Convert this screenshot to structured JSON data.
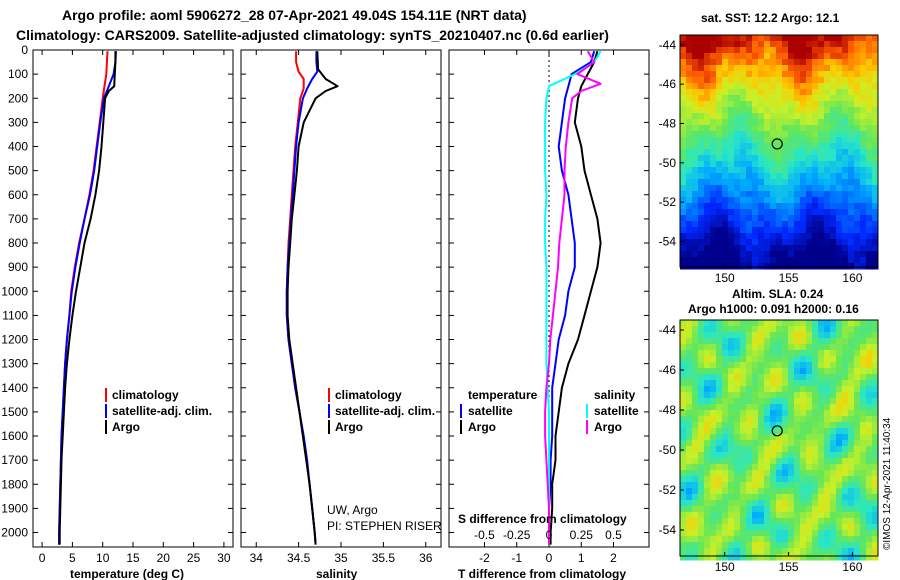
{
  "header": {
    "line1": "Argo profile: aoml 5906272_28 07-Apr-2021 49.04S 154.11E (NRT data)",
    "line2": "Climatology: CARS2009. Satellite-adjusted climatology: synTS_20210407.nc (0.6d earlier)"
  },
  "colors": {
    "climatology": "#ff0000",
    "satellite": "#0000ff",
    "argo": "#000000",
    "sat_salinity": "#00ffff",
    "argo_salinity": "#ff00ff"
  },
  "depth_axis": {
    "ticks": [
      0,
      100,
      200,
      300,
      400,
      500,
      600,
      700,
      800,
      900,
      1000,
      1100,
      1200,
      1300,
      1400,
      1500,
      1600,
      1700,
      1800,
      1900,
      2000
    ],
    "range": [
      0,
      2060
    ]
  },
  "chart_data": [
    {
      "type": "line",
      "title": "",
      "xlabel": "temperature (deg C)",
      "ylabel": "depth",
      "xlim": [
        -1.5,
        31.5
      ],
      "x_ticks": [
        0,
        5,
        10,
        15,
        20,
        25,
        30
      ],
      "legend": [
        "climatology",
        "satellite-adj. clim.",
        "Argo"
      ],
      "series": [
        {
          "name": "climatology",
          "depth": [
            5,
            50,
            100,
            150,
            200,
            300,
            400,
            500,
            600,
            700,
            800,
            900,
            1000,
            1100,
            1200,
            1300,
            1400,
            1500,
            1600,
            1700,
            1800,
            1900,
            2000,
            2050
          ],
          "values": [
            10.8,
            10.7,
            10.6,
            10.3,
            10.0,
            9.5,
            9.0,
            8.5,
            7.8,
            7.0,
            6.1,
            5.4,
            4.8,
            4.5,
            4.1,
            3.8,
            3.6,
            3.4,
            3.2,
            3.1,
            3.0,
            2.9,
            2.8,
            2.8
          ]
        },
        {
          "name": "satellite-adj. clim.",
          "depth": [
            5,
            50,
            100,
            150,
            200,
            300,
            400,
            500,
            600,
            700,
            800,
            900,
            1000,
            1100,
            1200,
            1300,
            1400,
            1500,
            1600,
            1700,
            1800,
            1900,
            2000,
            2050
          ],
          "values": [
            12.2,
            12.1,
            11.8,
            11.0,
            10.2,
            9.6,
            9.1,
            8.6,
            7.9,
            7.0,
            6.2,
            5.5,
            4.9,
            4.5,
            4.1,
            3.8,
            3.6,
            3.4,
            3.2,
            3.1,
            3.0,
            2.9,
            2.8,
            2.8
          ]
        },
        {
          "name": "Argo",
          "depth": [
            5,
            50,
            100,
            150,
            170,
            200,
            300,
            400,
            500,
            600,
            700,
            800,
            900,
            1000,
            1100,
            1200,
            1300,
            1400,
            1500,
            1600,
            1700,
            1800,
            1900,
            2000,
            2050
          ],
          "values": [
            12.1,
            12.1,
            12.0,
            11.9,
            11.0,
            10.4,
            10.1,
            9.8,
            9.4,
            8.8,
            8.0,
            7.0,
            6.3,
            5.6,
            5.0,
            4.5,
            4.1,
            3.8,
            3.6,
            3.4,
            3.2,
            3.1,
            3.0,
            2.9,
            2.9
          ]
        }
      ]
    },
    {
      "type": "line",
      "xlabel": "salinity",
      "ylabel": "depth",
      "xlim": [
        33.82,
        36.18
      ],
      "x_ticks": [
        34,
        34.5,
        35,
        35.5,
        36
      ],
      "x_tick_labels": [
        "34",
        "34.5",
        "35",
        "35.5",
        "36"
      ],
      "legend": [
        "climatology",
        "satellite-adj. clim.",
        "Argo"
      ],
      "annotations": [
        "UW, Argo",
        "PI: STEPHEN RISER"
      ],
      "series": [
        {
          "name": "climatology",
          "depth": [
            5,
            50,
            90,
            120,
            160,
            200,
            300,
            400,
            500,
            600,
            700,
            800,
            900,
            1000,
            1100,
            1200,
            1300,
            1400,
            1500,
            1600,
            1700,
            1800,
            1900,
            2000,
            2050
          ],
          "values": [
            34.47,
            34.47,
            34.5,
            34.56,
            34.56,
            34.52,
            34.49,
            34.46,
            34.44,
            34.42,
            34.4,
            34.38,
            34.37,
            34.36,
            34.36,
            34.38,
            34.42,
            34.46,
            34.51,
            34.55,
            34.59,
            34.63,
            34.66,
            34.69,
            34.7
          ]
        },
        {
          "name": "satellite-adj. clim.",
          "depth": [
            5,
            50,
            90,
            120,
            160,
            200,
            300,
            400,
            500,
            600,
            700,
            800,
            900,
            1000,
            1100,
            1200,
            1300,
            1400,
            1500,
            1600,
            1700,
            1800,
            1900,
            2000,
            2050
          ],
          "values": [
            34.71,
            34.71,
            34.72,
            34.66,
            34.6,
            34.55,
            34.5,
            34.47,
            34.45,
            34.43,
            34.41,
            34.39,
            34.37,
            34.36,
            34.36,
            34.38,
            34.42,
            34.46,
            34.51,
            34.56,
            34.6,
            34.63,
            34.66,
            34.69,
            34.7
          ]
        },
        {
          "name": "Argo",
          "depth": [
            5,
            80,
            120,
            150,
            170,
            200,
            300,
            400,
            500,
            600,
            700,
            800,
            900,
            1000,
            1100,
            1200,
            1300,
            1400,
            1500,
            1600,
            1700,
            1800,
            1900,
            2000,
            2050
          ],
          "values": [
            34.72,
            34.73,
            34.82,
            34.96,
            34.82,
            34.7,
            34.56,
            34.5,
            34.48,
            34.45,
            34.42,
            34.4,
            34.38,
            34.37,
            34.37,
            34.39,
            34.43,
            34.47,
            34.51,
            34.55,
            34.59,
            34.63,
            34.66,
            34.69,
            34.7
          ]
        }
      ]
    },
    {
      "type": "line",
      "xlabel": "T difference from climatology",
      "ylabel": "depth",
      "xlim": [
        -3.1,
        3.1
      ],
      "x_ticks": [
        -2,
        -1,
        0,
        1,
        2
      ],
      "secondary_axis_label": "S difference from climatology",
      "secondary_ticks": [
        -0.5,
        -0.25,
        0,
        0.25,
        0.5
      ],
      "secondary_tick_labels": [
        "-0.5",
        "-0.25",
        "0",
        "0.25",
        "0.5"
      ],
      "legend_temperature": [
        "satellite",
        "Argo"
      ],
      "legend_salinity": [
        "satellite",
        "Argo"
      ],
      "legend_headers": [
        "temperature",
        "salinity"
      ],
      "series": [
        {
          "name": "T satellite",
          "depth": [
            5,
            50,
            100,
            150,
            200,
            300,
            400,
            500,
            600,
            700,
            800,
            900,
            1000,
            1100,
            1200,
            1300,
            1400,
            1500,
            1600,
            1700,
            1800,
            1900,
            2000,
            2050
          ],
          "values": [
            1.4,
            1.3,
            0.7,
            0.6,
            0.5,
            0.4,
            0.3,
            0.4,
            0.6,
            0.7,
            0.8,
            0.8,
            0.6,
            0.5,
            0.3,
            0.2,
            0.1,
            0.1,
            0.1,
            0.05,
            0.05,
            0.0,
            0.0,
            0.0
          ]
        },
        {
          "name": "T Argo",
          "depth": [
            5,
            50,
            100,
            150,
            200,
            300,
            400,
            500,
            600,
            700,
            800,
            900,
            1000,
            1100,
            1200,
            1300,
            1400,
            1500,
            1600,
            1700,
            1800,
            1900,
            2000,
            2050
          ],
          "values": [
            1.5,
            1.4,
            1.2,
            1.0,
            0.9,
            0.8,
            1.0,
            1.1,
            1.3,
            1.5,
            1.6,
            1.5,
            1.3,
            1.1,
            0.9,
            0.6,
            0.4,
            0.3,
            0.2,
            0.2,
            0.1,
            0.1,
            0.05,
            0.05
          ]
        },
        {
          "name": "S satellite",
          "depth": [
            5,
            50,
            100,
            150,
            200,
            300,
            400,
            500,
            600,
            700,
            800,
            900,
            1000,
            1100,
            1200,
            1300,
            1400,
            1500,
            1600,
            1700,
            1800,
            1900,
            2000,
            2050
          ],
          "values": [
            0.4,
            0.35,
            0.2,
            0.0,
            -0.02,
            -0.03,
            -0.03,
            -0.03,
            -0.02,
            -0.03,
            -0.03,
            -0.02,
            -0.02,
            -0.02,
            -0.02,
            -0.02,
            -0.01,
            0.0,
            0.0,
            0.0,
            0.0,
            0.0,
            0.0,
            0.0
          ]
        },
        {
          "name": "S Argo",
          "depth": [
            5,
            50,
            100,
            140,
            170,
            200,
            300,
            400,
            500,
            600,
            700,
            800,
            900,
            1000,
            1100,
            1200,
            1300,
            1400,
            1500,
            1600,
            1700,
            1800,
            1900,
            2000,
            2050
          ],
          "values": [
            0.3,
            0.35,
            0.22,
            0.4,
            0.25,
            0.18,
            0.15,
            0.13,
            0.12,
            0.12,
            0.1,
            0.08,
            0.07,
            0.05,
            0.03,
            0.01,
            0.0,
            -0.02,
            -0.03,
            -0.03,
            -0.02,
            -0.01,
            0.0,
            0.0,
            0.0
          ]
        }
      ]
    },
    {
      "type": "heatmap",
      "title": "sat. SST: 12.2 Argo: 12.1",
      "x_ticks": [
        150,
        155,
        160
      ],
      "y_ticks": [
        -44,
        -46,
        -48,
        -50,
        -52,
        -54
      ],
      "xlim": [
        146.5,
        162.0
      ],
      "ylim": [
        -55.3,
        -43.5
      ],
      "marker": {
        "lon": 154.11,
        "lat": -49.04
      }
    },
    {
      "type": "heatmap",
      "title_line1": "Altim. SLA: 0.24",
      "title_line2": "Argo h1000: 0.091 h2000: 0.16",
      "x_ticks": [
        150,
        155,
        160
      ],
      "y_ticks": [
        -44,
        -46,
        -48,
        -50,
        -52,
        -54
      ],
      "xlim": [
        146.5,
        162.0
      ],
      "ylim": [
        -55.3,
        -43.5
      ],
      "marker": {
        "lon": 154.11,
        "lat": -49.04
      },
      "watermark": "©IMOS 12-Apr-2021 11:40:34"
    }
  ]
}
